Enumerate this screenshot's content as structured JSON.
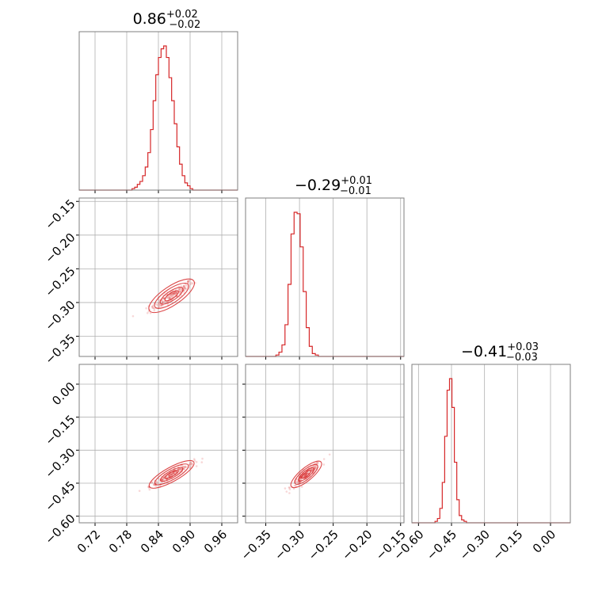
{
  "chart_data": {
    "type": "corner",
    "color": "#d62728",
    "grid": true,
    "parameters": [
      {
        "index": 0,
        "median": 0.86,
        "err_plus": 0.02,
        "err_minus": 0.02,
        "title_value": "0.86",
        "title_plus": "+0.02",
        "title_minus": "−0.02",
        "range": [
          0.69,
          0.99
        ],
        "ticks": [
          0.72,
          0.78,
          0.84,
          0.9,
          0.96
        ],
        "tick_labels": [
          "0.72",
          "0.78",
          "0.84",
          "0.90",
          "0.96"
        ],
        "histogram": {
          "edges_start": 0.79,
          "bin_width": 0.005,
          "counts": [
            1,
            2,
            4,
            6,
            10,
            16,
            26,
            42,
            62,
            80,
            92,
            98,
            100,
            92,
            78,
            62,
            46,
            30,
            18,
            10,
            5,
            3,
            1
          ]
        }
      },
      {
        "index": 1,
        "median": -0.29,
        "err_plus": 0.01,
        "err_minus": 0.01,
        "title_value": "−0.29",
        "title_plus": "+0.01",
        "title_minus": "−0.01",
        "range": [
          -0.38,
          -0.145
        ],
        "ticks": [
          -0.35,
          -0.3,
          -0.25,
          -0.2,
          -0.15
        ],
        "tick_labels": [
          "−0.35",
          "−0.30",
          "−0.25",
          "−0.20",
          "−0.15"
        ],
        "histogram": {
          "edges_start": -0.335,
          "bin_width": 0.0045,
          "counts": [
            1,
            3,
            8,
            22,
            50,
            85,
            100,
            99,
            76,
            45,
            20,
            7,
            2,
            1
          ]
        }
      },
      {
        "index": 2,
        "median": -0.41,
        "err_plus": 0.03,
        "err_minus": 0.03,
        "title_value": "−0.41",
        "title_plus": "+0.03",
        "title_minus": "−0.03",
        "range": [
          -0.63,
          0.09
        ],
        "ticks": [
          -0.6,
          -0.45,
          -0.3,
          -0.15,
          0.0
        ],
        "tick_labels": [
          "−0.60",
          "−0.45",
          "−0.30",
          "−0.15",
          "0.00"
        ],
        "histogram": {
          "edges_start": -0.525,
          "bin_width": 0.011,
          "counts": [
            1,
            3,
            10,
            28,
            60,
            92,
            100,
            80,
            42,
            16,
            5,
            2,
            1
          ]
        }
      }
    ],
    "pairs": [
      {
        "x_param": 0,
        "y_param": 1,
        "x_center": 0.865,
        "y_center": -0.29,
        "x_sigma": 0.021,
        "y_sigma": 0.011,
        "correlation": 0.92
      },
      {
        "x_param": 0,
        "y_param": 2,
        "x_center": 0.865,
        "y_center": -0.41,
        "x_sigma": 0.021,
        "y_sigma": 0.028,
        "correlation": 0.95
      },
      {
        "x_param": 1,
        "y_param": 2,
        "x_center": -0.29,
        "y_center": -0.41,
        "x_sigma": 0.011,
        "y_sigma": 0.028,
        "correlation": 0.93
      }
    ]
  }
}
